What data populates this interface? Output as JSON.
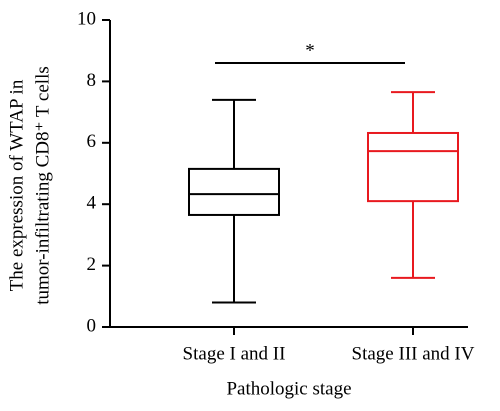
{
  "chart_data": {
    "type": "box",
    "y_label_lines": [
      "The expression of WTAP in",
      "tumor-infiltrating CD8⁺ T cells"
    ],
    "x_label": "Pathologic stage",
    "categories": [
      "Stage I and II",
      "Stage III and IV"
    ],
    "boxes": [
      {
        "min": 0.8,
        "q1": 3.65,
        "median": 4.33,
        "q3": 5.15,
        "max": 7.4,
        "color": "#000000"
      },
      {
        "min": 1.6,
        "q1": 4.1,
        "median": 5.73,
        "q3": 6.32,
        "max": 7.65,
        "color": "#e8191f"
      }
    ],
    "significance": "*",
    "ylim": [
      0,
      10
    ],
    "yticks": [
      0,
      2,
      4,
      6,
      8,
      10
    ]
  }
}
